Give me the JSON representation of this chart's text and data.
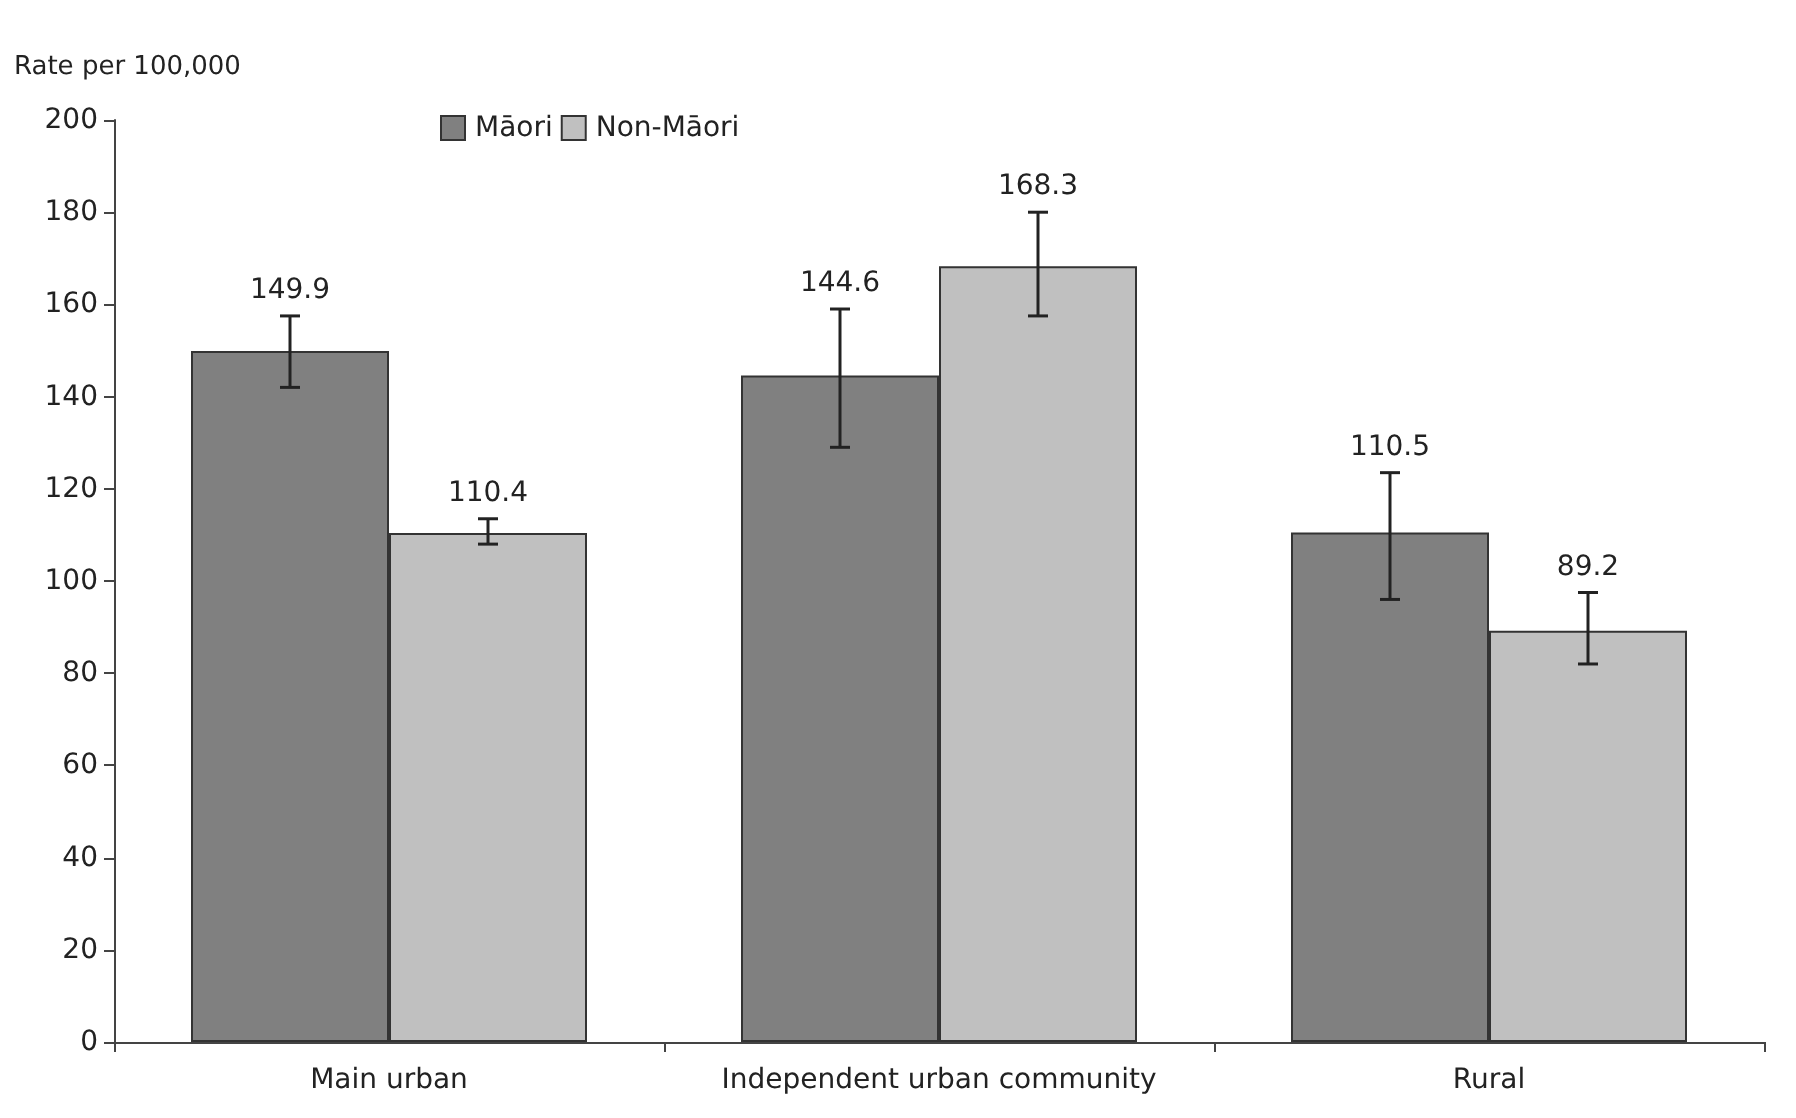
{
  "chart_data": {
    "type": "bar",
    "ylabel": "Rate per 100,000",
    "categories": [
      "Main urban",
      "Independent urban community",
      "Rural"
    ],
    "series": [
      {
        "name": "Māori",
        "color": "#808080",
        "values": [
          149.9,
          144.6,
          110.5
        ],
        "errors": [
          [
            142,
            157.5
          ],
          [
            129,
            159
          ],
          [
            96,
            123.5
          ]
        ]
      },
      {
        "name": "Non-Māori",
        "color": "#c0c0c0",
        "values": [
          110.4,
          168.3,
          89.2
        ],
        "errors": [
          [
            108,
            113.5
          ],
          [
            157.5,
            180
          ],
          [
            82,
            97.5
          ]
        ]
      }
    ],
    "ylim": [
      0,
      200
    ],
    "yticks": [
      0,
      20,
      40,
      60,
      80,
      100,
      120,
      140,
      160,
      180,
      200
    ],
    "data_labels": true,
    "grid": false,
    "legend": "top left"
  }
}
